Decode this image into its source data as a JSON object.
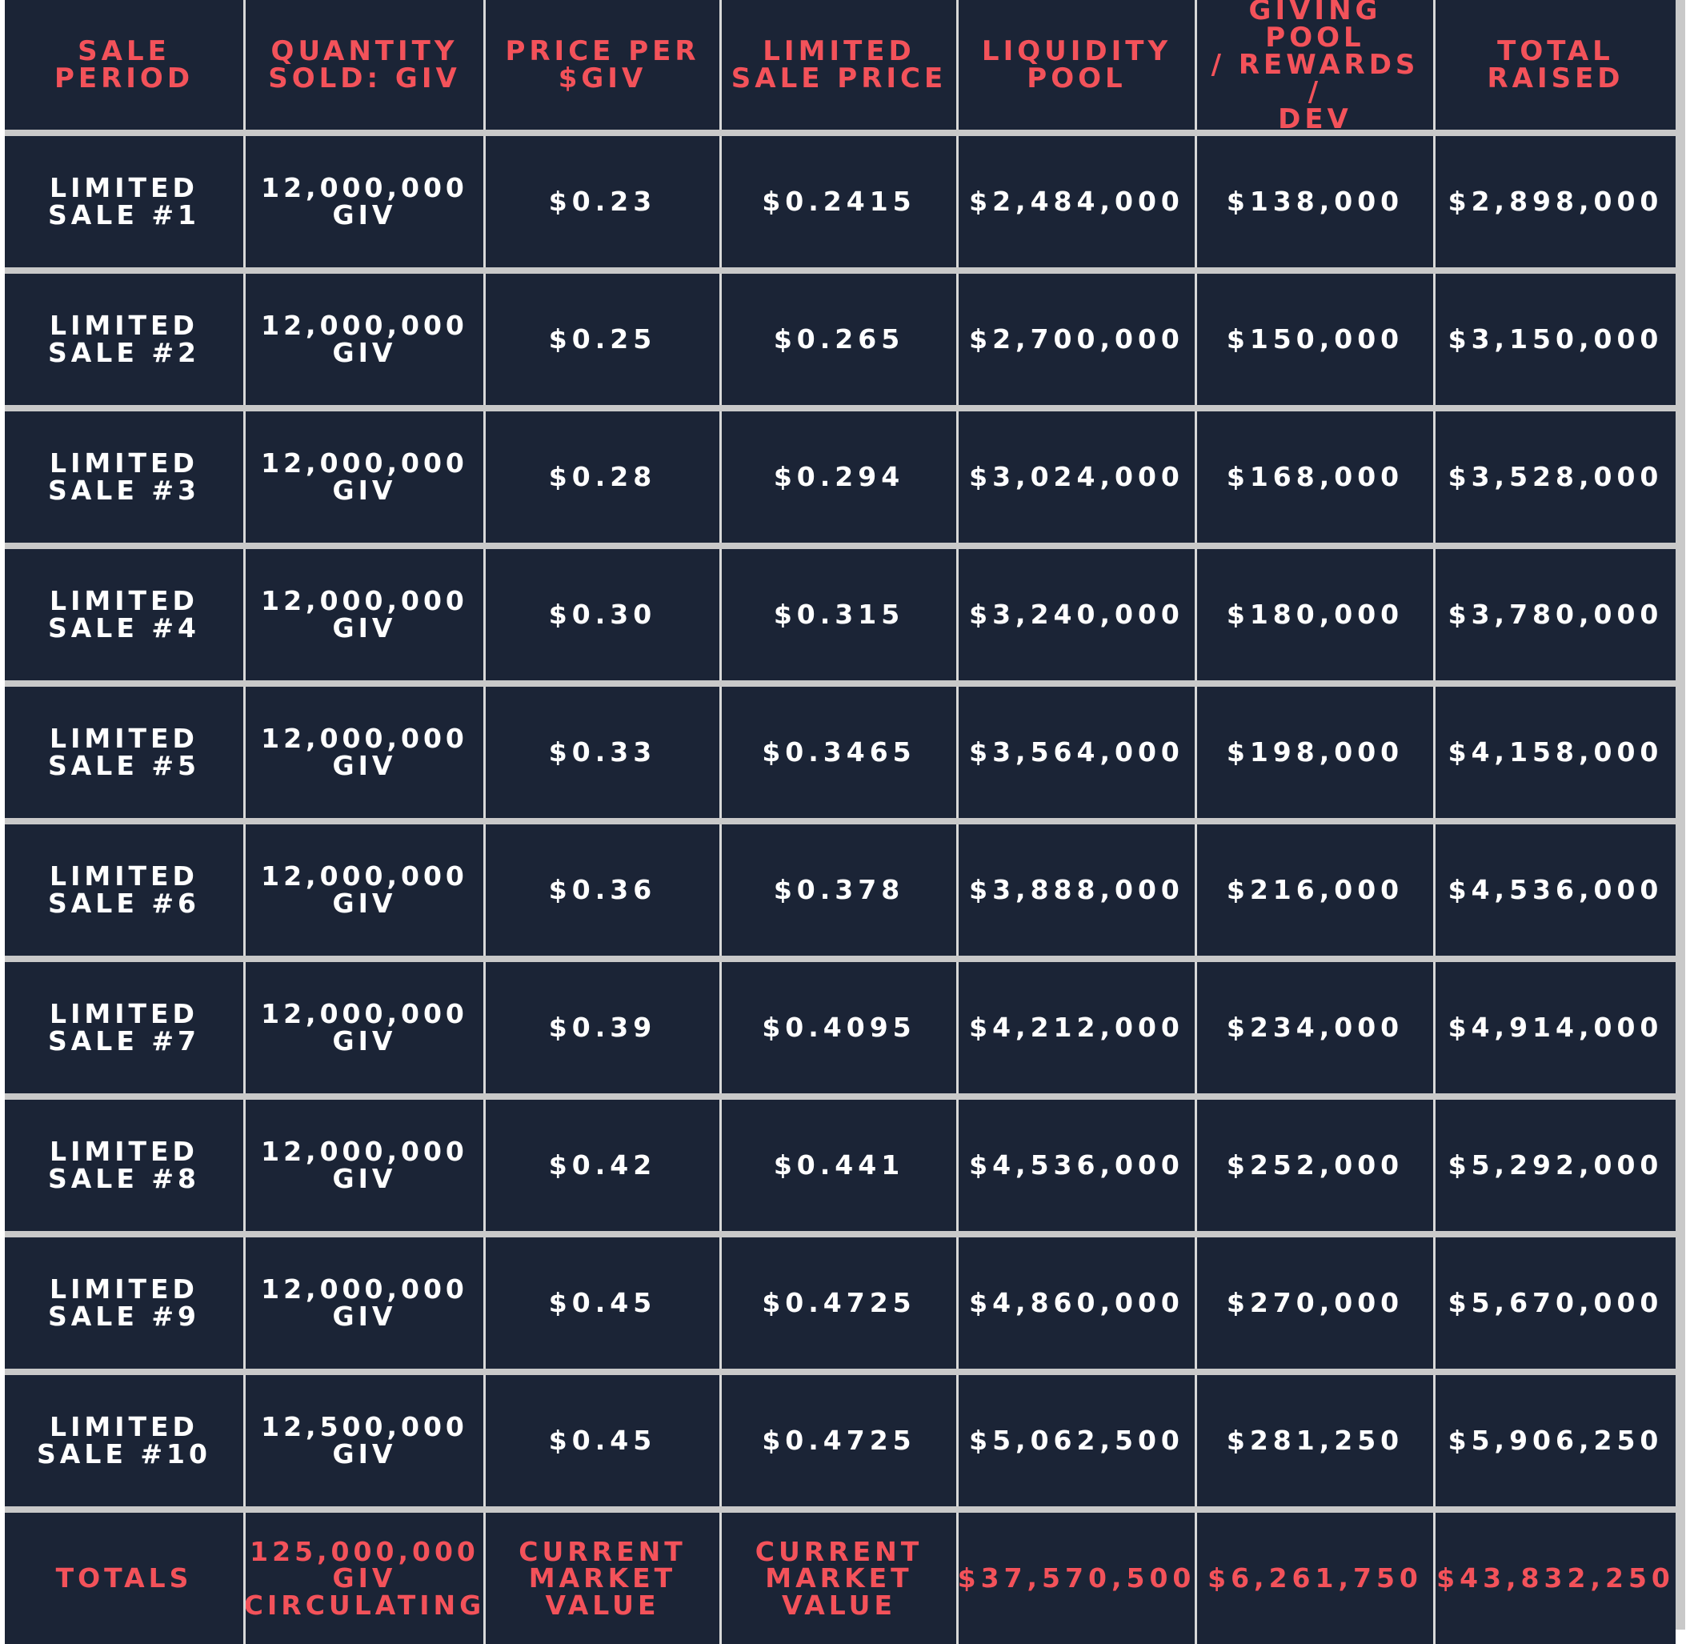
{
  "table": {
    "headers": [
      "SALE PERIOD",
      "QUANTITY\nSOLD: GIV",
      "PRICE PER\n$GIV",
      "LIMITED\nSALE PRICE",
      "LIQUIDITY\nPOOL",
      "GIVING POOL\n/ REWARDS /\nDEV",
      "TOTAL\nRAISED"
    ],
    "rows": [
      [
        "LIMITED\nSALE #1",
        "12,000,000\nGIV",
        "$0.23",
        "$0.2415",
        "$2,484,000",
        "$138,000",
        "$2,898,000"
      ],
      [
        "LIMITED\nSALE #2",
        "12,000,000\nGIV",
        "$0.25",
        "$0.265",
        "$2,700,000",
        "$150,000",
        "$3,150,000"
      ],
      [
        "LIMITED\nSALE #3",
        "12,000,000\nGIV",
        "$0.28",
        "$0.294",
        "$3,024,000",
        "$168,000",
        "$3,528,000"
      ],
      [
        "LIMITED\nSALE #4",
        "12,000,000\nGIV",
        "$0.30",
        "$0.315",
        "$3,240,000",
        "$180,000",
        "$3,780,000"
      ],
      [
        "LIMITED\nSALE #5",
        "12,000,000\nGIV",
        "$0.33",
        "$0.3465",
        "$3,564,000",
        "$198,000",
        "$4,158,000"
      ],
      [
        "LIMITED\nSALE #6",
        "12,000,000\nGIV",
        "$0.36",
        "$0.378",
        "$3,888,000",
        "$216,000",
        "$4,536,000"
      ],
      [
        "LIMITED\nSALE #7",
        "12,000,000\nGIV",
        "$0.39",
        "$0.4095",
        "$4,212,000",
        "$234,000",
        "$4,914,000"
      ],
      [
        "LIMITED\nSALE #8",
        "12,000,000\nGIV",
        "$0.42",
        "$0.441",
        "$4,536,000",
        "$252,000",
        "$5,292,000"
      ],
      [
        "LIMITED\nSALE #9",
        "12,000,000\nGIV",
        "$0.45",
        "$0.4725",
        "$4,860,000",
        "$270,000",
        "$5,670,000"
      ],
      [
        "LIMITED\nSALE #10",
        "12,500,000\nGIV",
        "$0.45",
        "$0.4725",
        "$5,062,500",
        "$281,250",
        "$5,906,250"
      ]
    ],
    "totals": [
      "TOTALS",
      "125,000,000\nGIV\nCIRCULATING",
      "CURRENT\nMARKET\nVALUE",
      "CURRENT\nMARKET\nVALUE",
      "$37,570,500",
      "$6,261,750",
      "$43,832,250"
    ]
  },
  "colors": {
    "cell_background": "#1b2436",
    "header_text": "#f3525a",
    "body_text": "#ffffff",
    "separator": "#c9c9c9"
  }
}
